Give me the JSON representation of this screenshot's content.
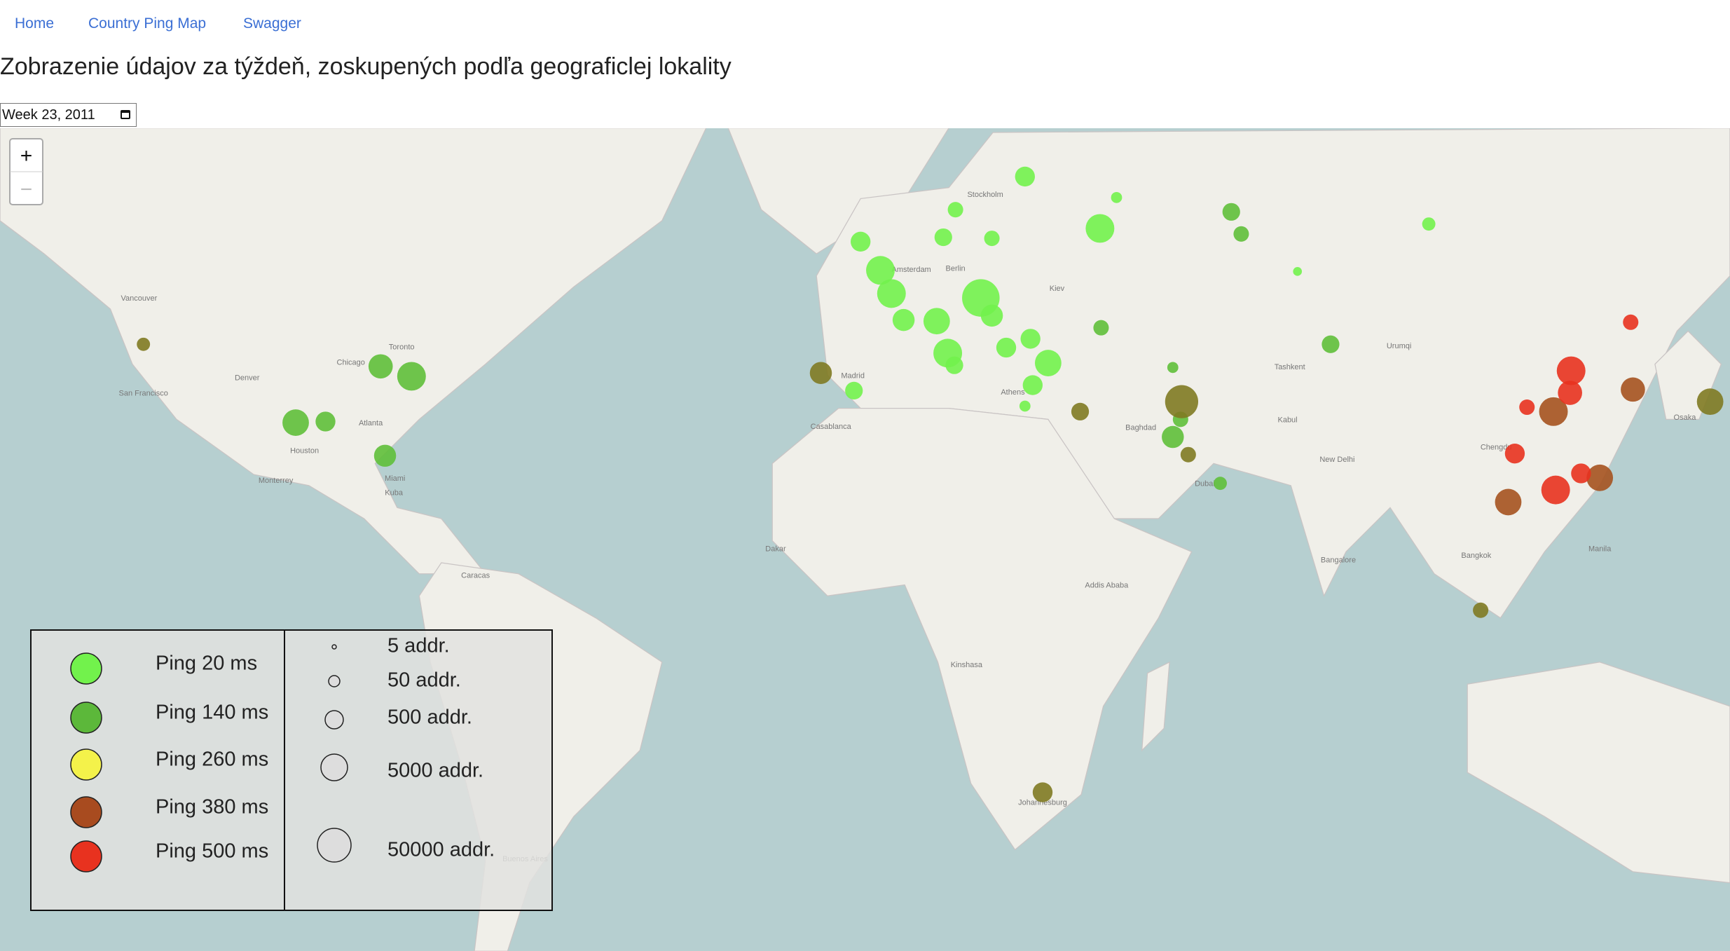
{
  "nav": [
    "Home",
    "Country Ping Map",
    "Swagger"
  ],
  "title": "Zobrazenie údajov za týždeň, zoskupených podľa geograficlej lokality",
  "week_input": "Week 23, 2011",
  "zoom": {
    "in": "+",
    "out": "−"
  },
  "legend": {
    "ping": [
      "Ping 20 ms",
      "Ping 140 ms",
      "Ping 260 ms",
      "Ping 380 ms",
      "Ping 500 ms"
    ],
    "size": [
      "5 addr.",
      "50 addr.",
      "500 addr.",
      "5000 addr.",
      "50000 addr."
    ]
  },
  "map_labels": [
    "Vancouver",
    "San Francisco",
    "Denver",
    "Chicago",
    "Toronto",
    "Atlanta",
    "Houston",
    "Monterrey",
    "Miami",
    "Kuba",
    "Caracas",
    "Madrid",
    "Casablanca",
    "Dakar",
    "Amsterdam",
    "Berlin",
    "Stockholm",
    "Kiev",
    "Athens",
    "Baghdad",
    "Dubai",
    "Tashkent",
    "Kabul",
    "New Delhi",
    "Urumqi",
    "Chengdu",
    "Bangkok",
    "Manila",
    "Osaka",
    "Bangalore",
    "Addis Ababa",
    "Kinshasa",
    "Johannesburg",
    "Buenos Aires"
  ]
}
